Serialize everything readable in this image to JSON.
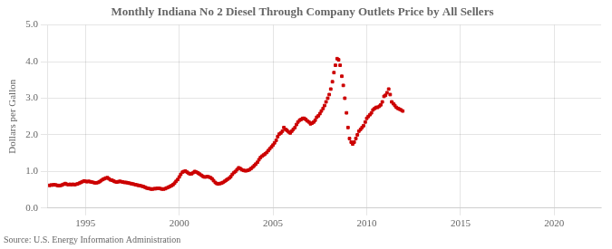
{
  "chart_data": {
    "type": "scatter",
    "title": "Monthly Indiana No 2 Diesel Through Company Outlets Price by All Sellers",
    "ylabel": "Dollars per Gallon",
    "annotations": [
      "Source: U.S. Energy Information Administration"
    ],
    "color": "#cc0000",
    "marker": "square",
    "grid": true,
    "xlim": [
      1993.0,
      2022.5
    ],
    "xticks": [
      1995,
      2000,
      2005,
      2010,
      2015,
      2020
    ],
    "ylim": [
      0.0,
      5.0
    ],
    "yticks": [
      {
        "value": 0.0,
        "label": "0.0"
      },
      {
        "value": 1.0,
        "label": "1.0"
      },
      {
        "value": 2.0,
        "label": "2.0"
      },
      {
        "value": 3.0,
        "label": "3.0"
      },
      {
        "value": 4.0,
        "label": "4.0"
      },
      {
        "value": 5.0,
        "label": "5.0"
      }
    ],
    "x": [
      1993.08,
      1993.17,
      1993.25,
      1993.33,
      1993.42,
      1993.5,
      1993.58,
      1993.67,
      1993.75,
      1993.83,
      1993.92,
      1994.0,
      1994.08,
      1994.17,
      1994.25,
      1994.33,
      1994.42,
      1994.5,
      1994.58,
      1994.67,
      1994.75,
      1994.83,
      1994.92,
      1995.0,
      1995.08,
      1995.17,
      1995.25,
      1995.33,
      1995.42,
      1995.5,
      1995.58,
      1995.67,
      1995.75,
      1995.83,
      1995.92,
      1996.0,
      1996.08,
      1996.17,
      1996.25,
      1996.33,
      1996.42,
      1996.5,
      1996.58,
      1996.67,
      1996.75,
      1996.83,
      1996.92,
      1997.0,
      1997.08,
      1997.17,
      1997.25,
      1997.33,
      1997.42,
      1997.5,
      1997.58,
      1997.67,
      1997.75,
      1997.83,
      1997.92,
      1998.0,
      1998.08,
      1998.17,
      1998.25,
      1998.33,
      1998.42,
      1998.5,
      1998.58,
      1998.67,
      1998.75,
      1998.83,
      1998.92,
      1999.0,
      1999.08,
      1999.17,
      1999.25,
      1999.33,
      1999.42,
      1999.5,
      1999.58,
      1999.67,
      1999.75,
      1999.83,
      1999.92,
      2000.0,
      2000.08,
      2000.17,
      2000.25,
      2000.33,
      2000.42,
      2000.5,
      2000.58,
      2000.67,
      2000.75,
      2000.83,
      2000.92,
      2001.0,
      2001.08,
      2001.17,
      2001.25,
      2001.33,
      2001.42,
      2001.5,
      2001.58,
      2001.67,
      2001.75,
      2001.83,
      2001.92,
      2002.0,
      2002.08,
      2002.17,
      2002.25,
      2002.33,
      2002.42,
      2002.5,
      2002.58,
      2002.67,
      2002.75,
      2002.83,
      2002.92,
      2003.0,
      2003.08,
      2003.17,
      2003.25,
      2003.33,
      2003.42,
      2003.5,
      2003.58,
      2003.67,
      2003.75,
      2003.83,
      2003.92,
      2004.0,
      2004.08,
      2004.17,
      2004.25,
      2004.33,
      2004.42,
      2004.5,
      2004.58,
      2004.67,
      2004.75,
      2004.83,
      2004.92,
      2005.0,
      2005.08,
      2005.17,
      2005.25,
      2005.33,
      2005.42,
      2005.5,
      2005.58,
      2005.67,
      2005.75,
      2005.83,
      2005.92,
      2006.0,
      2006.08,
      2006.17,
      2006.25,
      2006.33,
      2006.42,
      2006.5,
      2006.58,
      2006.67,
      2006.75,
      2006.83,
      2006.92,
      2007.0,
      2007.08,
      2007.17,
      2007.25,
      2007.33,
      2007.42,
      2007.5,
      2007.58,
      2007.67,
      2007.75,
      2007.83,
      2007.92,
      2008.0,
      2008.08,
      2008.17,
      2008.25,
      2008.33,
      2008.42,
      2008.5,
      2008.58,
      2008.67,
      2008.75,
      2008.83,
      2008.92,
      2009.0,
      2009.08,
      2009.17,
      2009.25,
      2009.33,
      2009.42,
      2009.5,
      2009.58,
      2009.67,
      2009.75,
      2009.83,
      2009.92,
      2010.0,
      2010.08,
      2010.17,
      2010.25,
      2010.33,
      2010.42,
      2010.5,
      2010.58,
      2010.67,
      2010.75,
      2010.83,
      2010.92,
      2011.0,
      2011.08,
      2011.17,
      2011.25,
      2011.33,
      2011.42,
      2011.5,
      2011.58,
      2011.67,
      2011.75,
      2011.83,
      2011.92
    ],
    "values": [
      0.62,
      0.63,
      0.63,
      0.64,
      0.63,
      0.62,
      0.61,
      0.62,
      0.63,
      0.65,
      0.67,
      0.65,
      0.64,
      0.65,
      0.64,
      0.65,
      0.64,
      0.65,
      0.66,
      0.68,
      0.7,
      0.72,
      0.74,
      0.73,
      0.72,
      0.73,
      0.72,
      0.71,
      0.7,
      0.69,
      0.69,
      0.7,
      0.72,
      0.75,
      0.78,
      0.8,
      0.82,
      0.83,
      0.8,
      0.77,
      0.76,
      0.74,
      0.72,
      0.71,
      0.72,
      0.73,
      0.72,
      0.71,
      0.7,
      0.7,
      0.69,
      0.68,
      0.67,
      0.66,
      0.65,
      0.64,
      0.63,
      0.62,
      0.61,
      0.6,
      0.59,
      0.57,
      0.55,
      0.54,
      0.53,
      0.52,
      0.52,
      0.53,
      0.53,
      0.54,
      0.54,
      0.53,
      0.52,
      0.52,
      0.53,
      0.55,
      0.57,
      0.59,
      0.61,
      0.64,
      0.68,
      0.73,
      0.78,
      0.85,
      0.92,
      0.98,
      1.0,
      1.01,
      0.98,
      0.95,
      0.93,
      0.94,
      0.97,
      1.0,
      0.98,
      0.96,
      0.93,
      0.9,
      0.87,
      0.85,
      0.85,
      0.86,
      0.85,
      0.83,
      0.8,
      0.75,
      0.7,
      0.67,
      0.66,
      0.67,
      0.68,
      0.7,
      0.73,
      0.76,
      0.79,
      0.82,
      0.86,
      0.92,
      0.97,
      1.0,
      1.05,
      1.1,
      1.08,
      1.05,
      1.03,
      1.02,
      1.02,
      1.03,
      1.05,
      1.08,
      1.12,
      1.16,
      1.2,
      1.25,
      1.32,
      1.38,
      1.42,
      1.45,
      1.48,
      1.52,
      1.57,
      1.62,
      1.67,
      1.72,
      1.78,
      1.85,
      1.95,
      2.02,
      2.05,
      2.1,
      2.2,
      2.15,
      2.12,
      2.08,
      2.05,
      2.1,
      2.15,
      2.2,
      2.28,
      2.35,
      2.4,
      2.42,
      2.45,
      2.45,
      2.42,
      2.38,
      2.35,
      2.3,
      2.32,
      2.35,
      2.4,
      2.48,
      2.52,
      2.58,
      2.65,
      2.72,
      2.8,
      2.9,
      3.0,
      3.1,
      3.25,
      3.45,
      3.7,
      3.9,
      4.08,
      4.05,
      3.9,
      3.6,
      3.35,
      3.0,
      2.6,
      2.2,
      1.9,
      1.8,
      1.75,
      1.8,
      1.9,
      2.0,
      2.1,
      2.15,
      2.2,
      2.25,
      2.35,
      2.45,
      2.5,
      2.55,
      2.6,
      2.68,
      2.72,
      2.75,
      2.75,
      2.78,
      2.82,
      2.9,
      3.05,
      3.08,
      3.15,
      3.25,
      3.1,
      2.9,
      2.85,
      2.8,
      2.75,
      2.72,
      2.7,
      2.68,
      2.65
    ]
  }
}
